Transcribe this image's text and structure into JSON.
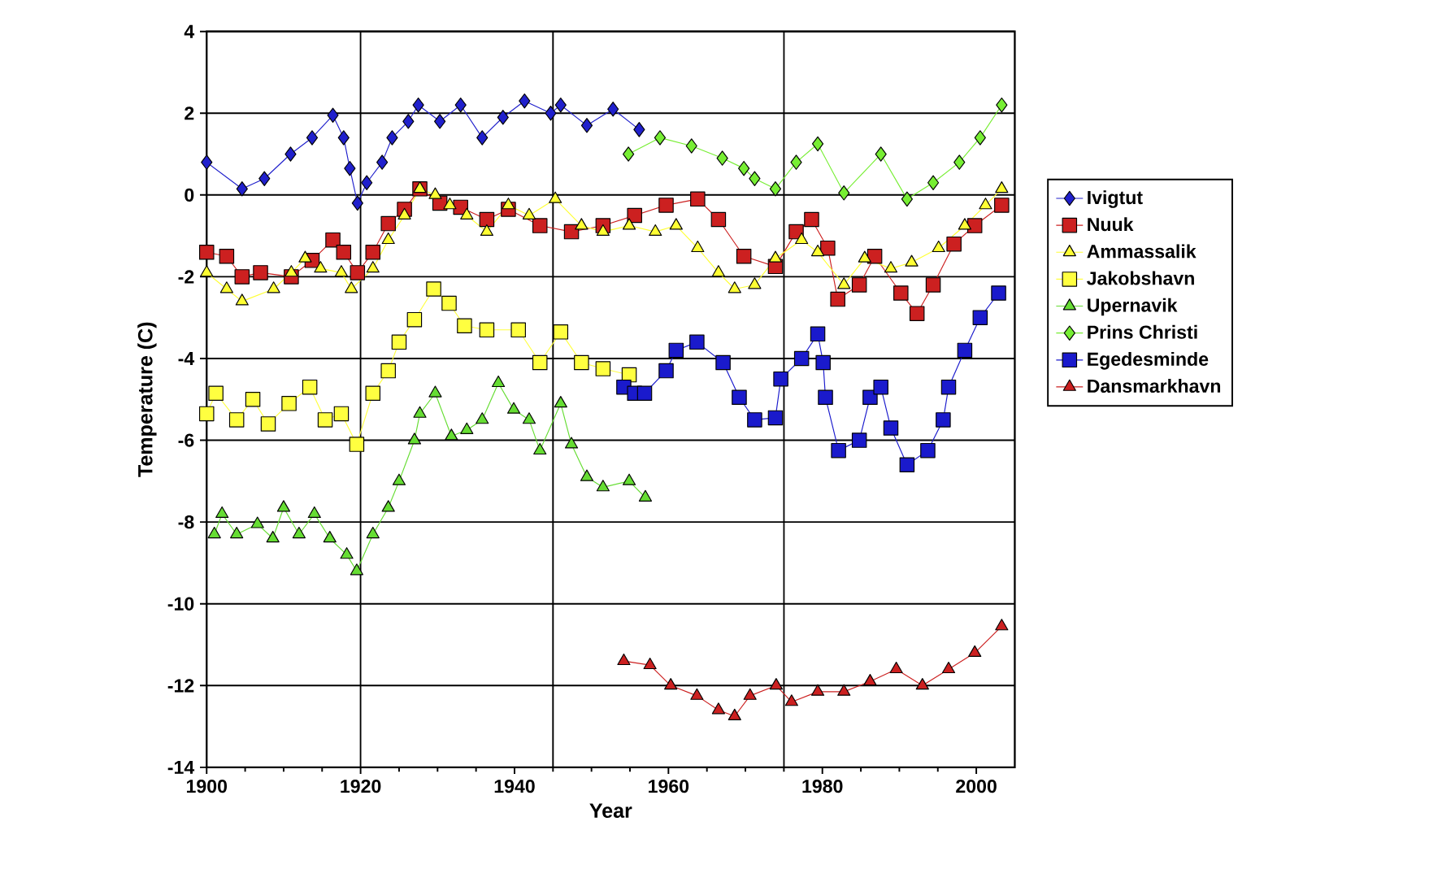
{
  "chart_data": {
    "type": "line",
    "xlabel": "Year",
    "ylabel": "Temperature (C)",
    "xlim": [
      1900,
      2005
    ],
    "ylim": [
      -14,
      4
    ],
    "xticks": [
      1900,
      1920,
      1940,
      1960,
      1980,
      2000
    ],
    "yticks": [
      -14,
      -12,
      -10,
      -8,
      -6,
      -4,
      -2,
      0,
      2,
      4
    ],
    "grid": "y",
    "legend": "right",
    "ref_lines": [
      {
        "axis": "x",
        "value": 1920,
        "color": "#000000"
      },
      {
        "axis": "x",
        "value": 1945,
        "color": "#000000"
      },
      {
        "axis": "x",
        "value": 1975,
        "color": "#000000"
      }
    ],
    "series": [
      {
        "name": "Ivigtut",
        "color": "#2020cc",
        "marker": "diamond",
        "x": [
          1900,
          1904.6,
          1907.5,
          1910.9,
          1913.7,
          1916.4,
          1917.8,
          1918.6,
          1919.6,
          1920.8,
          1922.8,
          1924.1,
          1926.2,
          1927.5,
          1930.3,
          1933,
          1935.8,
          1938.5,
          1941.3,
          1944.7,
          1946,
          1949.4,
          1952.8,
          1956.2
        ],
        "values": [
          0.8,
          0.15,
          0.4,
          1.0,
          1.4,
          1.95,
          1.4,
          0.65,
          -0.2,
          0.3,
          0.8,
          1.4,
          1.8,
          2.2,
          1.8,
          2.2,
          1.4,
          1.9,
          2.3,
          2.0,
          2.2,
          1.7,
          2.1,
          1.6
        ]
      },
      {
        "name": "Nuuk",
        "color": "#cc2020",
        "marker": "square",
        "x": [
          1900,
          1902.6,
          1904.6,
          1907,
          1911,
          1913.7,
          1916.4,
          1917.8,
          1919.6,
          1921.6,
          1923.6,
          1925.7,
          1927.7,
          1930.3,
          1933,
          1936.4,
          1939.2,
          1943.3,
          1947.4,
          1951.5,
          1955.6,
          1959.7,
          1963.8,
          1966.5,
          1969.8,
          1973.9,
          1976.6,
          1978.6,
          1980.7,
          1982,
          1984.8,
          1986.8,
          1990.2,
          1992.3,
          1994.4,
          1997.1,
          1999.8,
          2003.3
        ],
        "values": [
          -1.4,
          -1.5,
          -2.0,
          -1.9,
          -2.0,
          -1.6,
          -1.1,
          -1.4,
          -1.9,
          -1.4,
          -0.7,
          -0.35,
          0.15,
          -0.2,
          -0.3,
          -0.6,
          -0.35,
          -0.75,
          -0.9,
          -0.75,
          -0.5,
          -0.25,
          -0.1,
          -0.6,
          -1.5,
          -1.75,
          -0.9,
          -0.6,
          -1.3,
          -2.55,
          -2.2,
          -1.5,
          -2.4,
          -2.9,
          -2.2,
          -1.2,
          -0.75,
          -0.25
        ]
      },
      {
        "name": "Ammassalik",
        "color": "#ffff33",
        "marker": "triangle",
        "x": [
          1900,
          1902.6,
          1904.6,
          1908.7,
          1911,
          1912.8,
          1914.8,
          1917.5,
          1918.8,
          1921.6,
          1923.6,
          1925.7,
          1927.7,
          1929.7,
          1931.6,
          1933.8,
          1936.4,
          1939.2,
          1941.9,
          1945.3,
          1948.7,
          1951.5,
          1954.9,
          1958.3,
          1961,
          1963.8,
          1966.5,
          1968.6,
          1971.2,
          1973.9,
          1977.3,
          1979.4,
          1982.8,
          1985.5,
          1988.9,
          1991.6,
          1995.1,
          1998.5,
          2001.2,
          2003.3
        ],
        "values": [
          -1.9,
          -2.3,
          -2.6,
          -2.3,
          -1.9,
          -1.55,
          -1.8,
          -1.9,
          -2.3,
          -1.8,
          -1.1,
          -0.5,
          0.15,
          0.0,
          -0.25,
          -0.5,
          -0.9,
          -0.25,
          -0.5,
          -0.1,
          -0.75,
          -0.9,
          -0.75,
          -0.9,
          -0.75,
          -1.3,
          -1.9,
          -2.3,
          -2.2,
          -1.55,
          -1.1,
          -1.4,
          -2.2,
          -1.55,
          -1.8,
          -1.65,
          -1.3,
          -0.75,
          -0.25,
          0.15
        ]
      },
      {
        "name": "Jakobshavn",
        "color": "#ffff40",
        "marker": "square",
        "x": [
          1900,
          1901.2,
          1903.9,
          1906,
          1908,
          1910.7,
          1913.4,
          1915.4,
          1917.5,
          1919.5,
          1921.6,
          1923.6,
          1925,
          1927,
          1929.5,
          1931.5,
          1933.5,
          1936.4,
          1940.5,
          1943.3,
          1946,
          1948.7,
          1951.5,
          1954.9
        ],
        "values": [
          -5.35,
          -4.85,
          -5.5,
          -5.0,
          -5.6,
          -5.1,
          -4.7,
          -5.5,
          -5.35,
          -6.1,
          -4.85,
          -4.3,
          -3.6,
          -3.05,
          -2.3,
          -2.65,
          -3.2,
          -3.3,
          -3.3,
          -4.1,
          -3.35,
          -4.1,
          -4.25,
          -4.4
        ]
      },
      {
        "name": "Upernavik",
        "color": "#66dd33",
        "marker": "triangle",
        "x": [
          1901,
          1902,
          1903.9,
          1906.6,
          1908.6,
          1910,
          1912,
          1914,
          1916,
          1918.2,
          1919.5,
          1921.6,
          1923.6,
          1925,
          1927,
          1927.7,
          1929.7,
          1931.8,
          1933.8,
          1935.8,
          1937.9,
          1939.9,
          1941.9,
          1943.3,
          1946,
          1947.4,
          1949.4,
          1951.5,
          1954.9,
          1957
        ],
        "values": [
          -8.3,
          -7.8,
          -8.3,
          -8.05,
          -8.4,
          -7.65,
          -8.3,
          -7.8,
          -8.4,
          -8.8,
          -9.2,
          -8.3,
          -7.65,
          -7.0,
          -6.0,
          -5.35,
          -4.85,
          -5.9,
          -5.75,
          -5.5,
          -4.6,
          -5.25,
          -5.5,
          -6.25,
          -5.1,
          -6.1,
          -6.9,
          -7.15,
          -7.0,
          -7.4
        ]
      },
      {
        "name": "Prins Christi",
        "color": "#77ee33",
        "marker": "diamond",
        "x": [
          1954.8,
          1958.9,
          1963,
          1967,
          1969.8,
          1971.2,
          1973.9,
          1976.6,
          1979.4,
          1982.8,
          1987.6,
          1991,
          1994.4,
          1997.8,
          2000.5,
          2003.3
        ],
        "values": [
          1.0,
          1.4,
          1.2,
          0.9,
          0.65,
          0.4,
          0.15,
          0.8,
          1.25,
          0.05,
          1.0,
          -0.1,
          0.3,
          0.8,
          1.4,
          2.2
        ]
      },
      {
        "name": "Egedesminde",
        "color": "#1a1acc",
        "marker": "square",
        "x": [
          1954.2,
          1955.6,
          1956.9,
          1959.7,
          1961,
          1963.7,
          1967.1,
          1969.2,
          1971.2,
          1973.9,
          1974.6,
          1977.3,
          1979.4,
          1980.1,
          1980.4,
          1982.1,
          1984.8,
          1986.2,
          1987.6,
          1988.9,
          1991,
          1993.7,
          1995.7,
          1996.4,
          1998.5,
          2000.5,
          2002.9
        ],
        "values": [
          -4.7,
          -4.85,
          -4.85,
          -4.3,
          -3.8,
          -3.6,
          -4.1,
          -4.95,
          -5.5,
          -5.45,
          -4.5,
          -4.0,
          -3.4,
          -4.1,
          -4.95,
          -6.25,
          -6.0,
          -4.95,
          -4.7,
          -5.7,
          -6.6,
          -6.25,
          -5.5,
          -4.7,
          -3.8,
          -3.0,
          -2.4
        ]
      },
      {
        "name": "Dansmarkhavn",
        "color": "#cc2020",
        "marker": "triangle",
        "x": [
          1954.2,
          1957.6,
          1960.3,
          1963.7,
          1966.5,
          1968.6,
          1970.6,
          1974,
          1976,
          1979.4,
          1982.8,
          1986.2,
          1989.6,
          1993,
          1996.4,
          1999.8,
          2003.3
        ],
        "values": [
          -11.4,
          -11.5,
          -12.0,
          -12.25,
          -12.6,
          -12.75,
          -12.25,
          -12.0,
          -12.4,
          -12.15,
          -12.15,
          -11.9,
          -11.6,
          -12.0,
          -11.6,
          -11.2,
          -10.55
        ]
      }
    ]
  }
}
